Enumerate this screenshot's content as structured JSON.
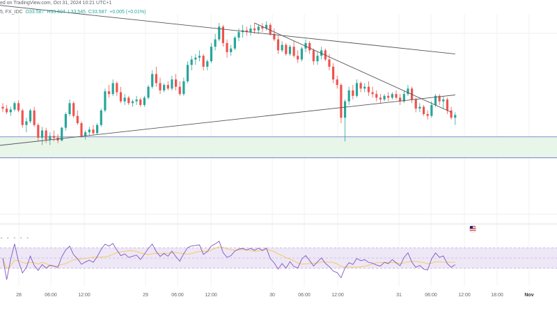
{
  "header": {
    "line1": "ed on TradingView.com, Oct 31, 2024 10:21 UTC+1",
    "line2_prefix": "5, FX_IDC",
    "open": "O33.587",
    "high": "H33.604",
    "low": "L33.545",
    "close": "C33.587",
    "change": "+0.005 (+0.01%)"
  },
  "rsi_dots": "∘ ∘ ∘ ∘ ∘",
  "chart_data": {
    "type": "candlestick",
    "title": "",
    "xlabel": "",
    "ylabel": "",
    "x_tick_labels": [
      "28",
      "06:00",
      "12:00",
      "29",
      "06:00",
      "12:00",
      "30",
      "06:00",
      "12:00",
      "31",
      "06:00",
      "12:00",
      "18:00",
      "Nov"
    ],
    "bold_ticks": [
      "Nov"
    ],
    "y_range": [
      32.6,
      34.8
    ],
    "ohlc": [
      [
        33.78,
        33.82,
        33.72,
        33.76
      ],
      [
        33.76,
        33.8,
        33.7,
        33.72
      ],
      [
        33.72,
        33.78,
        33.68,
        33.75
      ],
      [
        33.75,
        33.84,
        33.73,
        33.82
      ],
      [
        33.82,
        33.85,
        33.72,
        33.74
      ],
      [
        33.74,
        33.76,
        33.55,
        33.58
      ],
      [
        33.58,
        33.66,
        33.5,
        33.62
      ],
      [
        33.62,
        33.76,
        33.6,
        33.74
      ],
      [
        33.74,
        33.78,
        33.56,
        33.58
      ],
      [
        33.58,
        33.6,
        33.4,
        33.44
      ],
      [
        33.44,
        33.56,
        33.36,
        33.52
      ],
      [
        33.52,
        33.55,
        33.38,
        33.42
      ],
      [
        33.42,
        33.5,
        33.36,
        33.46
      ],
      [
        33.46,
        33.52,
        33.4,
        33.44
      ],
      [
        33.44,
        33.48,
        33.38,
        33.41
      ],
      [
        33.41,
        33.56,
        33.4,
        33.55
      ],
      [
        33.55,
        33.72,
        33.52,
        33.7
      ],
      [
        33.7,
        33.86,
        33.68,
        33.82
      ],
      [
        33.82,
        33.84,
        33.66,
        33.68
      ],
      [
        33.68,
        33.74,
        33.58,
        33.6
      ],
      [
        33.6,
        33.62,
        33.44,
        33.46
      ],
      [
        33.46,
        33.52,
        33.42,
        33.5
      ],
      [
        33.5,
        33.56,
        33.46,
        33.53
      ],
      [
        33.53,
        33.58,
        33.47,
        33.49
      ],
      [
        33.49,
        33.6,
        33.48,
        33.58
      ],
      [
        33.58,
        33.76,
        33.56,
        33.74
      ],
      [
        33.74,
        33.98,
        33.72,
        33.95
      ],
      [
        33.95,
        34.02,
        33.88,
        33.92
      ],
      [
        33.92,
        34.08,
        33.9,
        34.04
      ],
      [
        34.04,
        34.06,
        33.9,
        33.94
      ],
      [
        33.94,
        34.0,
        33.82,
        33.84
      ],
      [
        33.84,
        33.92,
        33.8,
        33.88
      ],
      [
        33.88,
        33.9,
        33.8,
        33.82
      ],
      [
        33.82,
        33.86,
        33.78,
        33.84
      ],
      [
        33.84,
        33.9,
        33.8,
        33.86
      ],
      [
        33.86,
        33.88,
        33.78,
        33.8
      ],
      [
        33.8,
        33.9,
        33.78,
        33.88
      ],
      [
        33.88,
        34.02,
        33.86,
        34.0
      ],
      [
        34.0,
        34.18,
        33.98,
        34.14
      ],
      [
        34.14,
        34.22,
        34.0,
        34.04
      ],
      [
        34.04,
        34.1,
        33.92,
        33.96
      ],
      [
        33.96,
        34.04,
        33.94,
        34.02
      ],
      [
        34.02,
        34.06,
        33.96,
        33.98
      ],
      [
        33.98,
        34.12,
        33.96,
        34.08
      ],
      [
        34.08,
        34.14,
        33.96,
        34.0
      ],
      [
        34.0,
        34.06,
        33.9,
        33.92
      ],
      [
        33.92,
        34.1,
        33.9,
        34.06
      ],
      [
        34.06,
        34.28,
        34.04,
        34.24
      ],
      [
        34.24,
        34.34,
        34.18,
        34.3
      ],
      [
        34.3,
        34.36,
        34.24,
        34.32
      ],
      [
        34.32,
        34.4,
        34.28,
        34.34
      ],
      [
        34.34,
        34.36,
        34.18,
        34.22
      ],
      [
        34.22,
        34.3,
        34.18,
        34.28
      ],
      [
        34.28,
        34.48,
        34.26,
        34.44
      ],
      [
        34.44,
        34.58,
        34.4,
        34.52
      ],
      [
        34.52,
        34.7,
        34.5,
        34.66
      ],
      [
        34.66,
        34.68,
        34.44,
        34.48
      ],
      [
        34.48,
        34.52,
        34.32,
        34.38
      ],
      [
        34.38,
        34.46,
        34.34,
        34.42
      ],
      [
        34.42,
        34.56,
        34.4,
        34.54
      ],
      [
        34.54,
        34.64,
        34.5,
        34.6
      ],
      [
        34.6,
        34.68,
        34.54,
        34.62
      ],
      [
        34.62,
        34.66,
        34.56,
        34.6
      ],
      [
        34.6,
        34.68,
        34.56,
        34.64
      ],
      [
        34.64,
        34.7,
        34.58,
        34.62
      ],
      [
        34.62,
        34.68,
        34.58,
        34.66
      ],
      [
        34.66,
        34.7,
        34.6,
        34.64
      ],
      [
        34.64,
        34.72,
        34.62,
        34.68
      ],
      [
        34.68,
        34.7,
        34.56,
        34.58
      ],
      [
        34.58,
        34.64,
        34.5,
        34.52
      ],
      [
        34.52,
        34.56,
        34.36,
        34.4
      ],
      [
        34.4,
        34.5,
        34.38,
        34.46
      ],
      [
        34.46,
        34.48,
        34.34,
        34.36
      ],
      [
        34.36,
        34.46,
        34.34,
        34.44
      ],
      [
        34.44,
        34.5,
        34.32,
        34.34
      ],
      [
        34.34,
        34.4,
        34.26,
        34.3
      ],
      [
        34.3,
        34.44,
        34.28,
        34.42
      ],
      [
        34.42,
        34.52,
        34.38,
        34.48
      ],
      [
        34.48,
        34.5,
        34.36,
        34.4
      ],
      [
        34.4,
        34.42,
        34.24,
        34.28
      ],
      [
        34.28,
        34.38,
        34.24,
        34.34
      ],
      [
        34.34,
        34.44,
        34.3,
        34.4
      ],
      [
        34.4,
        34.42,
        34.28,
        34.3
      ],
      [
        34.3,
        34.36,
        34.18,
        34.22
      ],
      [
        34.22,
        34.26,
        34.04,
        34.08
      ],
      [
        34.08,
        34.12,
        33.98,
        34.02
      ],
      [
        34.02,
        34.04,
        33.6,
        33.66
      ],
      [
        33.66,
        33.86,
        33.4,
        33.84
      ],
      [
        33.84,
        34.0,
        33.8,
        33.96
      ],
      [
        33.96,
        34.02,
        33.86,
        33.9
      ],
      [
        33.9,
        34.08,
        33.88,
        34.04
      ],
      [
        34.04,
        34.06,
        33.94,
        33.98
      ],
      [
        33.98,
        34.04,
        33.94,
        34.0
      ],
      [
        34.0,
        34.06,
        33.9,
        33.94
      ],
      [
        33.94,
        34.0,
        33.88,
        33.92
      ],
      [
        33.92,
        33.96,
        33.84,
        33.88
      ],
      [
        33.88,
        33.92,
        33.82,
        33.86
      ],
      [
        33.86,
        33.92,
        33.84,
        33.9
      ],
      [
        33.9,
        33.94,
        33.84,
        33.88
      ],
      [
        33.88,
        33.94,
        33.86,
        33.92
      ],
      [
        33.92,
        33.96,
        33.86,
        33.88
      ],
      [
        33.88,
        33.92,
        33.8,
        33.84
      ],
      [
        33.84,
        33.96,
        33.82,
        33.92
      ],
      [
        33.92,
        34.02,
        33.9,
        33.98
      ],
      [
        33.98,
        34.0,
        33.82,
        33.86
      ],
      [
        33.86,
        33.88,
        33.72,
        33.76
      ],
      [
        33.76,
        33.82,
        33.72,
        33.78
      ],
      [
        33.78,
        33.8,
        33.68,
        33.7
      ],
      [
        33.7,
        33.74,
        33.64,
        33.68
      ],
      [
        33.68,
        33.84,
        33.66,
        33.8
      ],
      [
        33.8,
        33.92,
        33.78,
        33.9
      ],
      [
        33.9,
        33.92,
        33.8,
        33.84
      ],
      [
        33.84,
        33.9,
        33.76,
        33.86
      ],
      [
        33.86,
        33.88,
        33.7,
        33.74
      ],
      [
        33.74,
        33.78,
        33.64,
        33.66
      ],
      [
        33.66,
        33.72,
        33.58,
        33.69
      ]
    ],
    "trendlines": [
      {
        "name": "resistance-long",
        "points": [
          [
            -2,
            34.9
          ],
          [
            115,
            34.36
          ]
        ]
      },
      {
        "name": "resistance-short",
        "points": [
          [
            64,
            34.7
          ],
          [
            114,
            33.72
          ]
        ]
      },
      {
        "name": "support",
        "points": [
          [
            -2,
            33.35
          ],
          [
            115,
            33.91
          ]
        ]
      }
    ],
    "support_zone": [
      33.22,
      33.45
    ],
    "rsi": {
      "range": [
        0,
        100
      ],
      "overbought": 70,
      "oversold": 30,
      "fill_color": "#ede7f6",
      "line_color": "#7e57c2",
      "ma_color": "#f9c74f"
    },
    "colors": {
      "up": "#26a69a",
      "down": "#ef5350",
      "trend": "#555555",
      "zone_fill": "#e8f5e9",
      "zone_border": "#5c6bc0"
    }
  }
}
